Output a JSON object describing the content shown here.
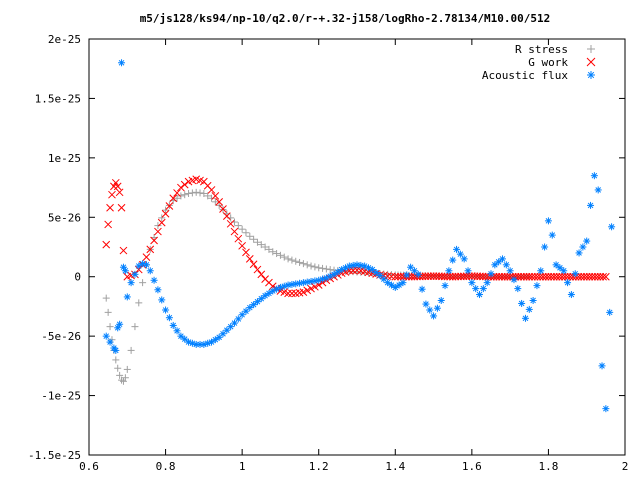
{
  "chart_data": {
    "type": "scatter",
    "title": "m5/js128/ks94/np-10/q2.0/r-+.32-j158/logRho-2.78134/M10.00/512",
    "xlim": [
      0.6,
      2.0
    ],
    "ylim": [
      -1.5e-25,
      2e-25
    ],
    "x_ticks": [
      {
        "value": 0.6,
        "label": "0.6"
      },
      {
        "value": 0.8,
        "label": "0.8"
      },
      {
        "value": 1.0,
        "label": "1"
      },
      {
        "value": 1.2,
        "label": "1.2"
      },
      {
        "value": 1.4,
        "label": "1.4"
      },
      {
        "value": 1.6,
        "label": "1.6"
      },
      {
        "value": 1.8,
        "label": "1.8"
      },
      {
        "value": 2.0,
        "label": "2"
      }
    ],
    "y_ticks": [
      {
        "value": 2e-25,
        "label": "2e-25"
      },
      {
        "value": 1.5e-25,
        "label": "1.5e-25"
      },
      {
        "value": 1e-25,
        "label": "1e-25"
      },
      {
        "value": 5e-26,
        "label": "5e-26"
      },
      {
        "value": 0,
        "label": "0"
      },
      {
        "value": -5e-26,
        "label": "-5e-26"
      },
      {
        "value": -1e-25,
        "label": "-1e-25"
      },
      {
        "value": -1.5e-25,
        "label": "-1.5e-25"
      }
    ],
    "grid": false,
    "legend_position": "top-right",
    "series": [
      {
        "name": "R stress",
        "marker": "plus",
        "color": "#a0a0a0",
        "x": [
          0.645,
          0.65,
          0.655,
          0.66,
          0.665,
          0.67,
          0.675,
          0.68,
          0.685,
          0.69,
          0.695,
          0.7,
          0.71,
          0.72,
          0.73,
          0.74,
          0.75,
          0.76,
          0.78,
          0.8,
          0.82,
          0.84,
          0.86,
          0.88,
          0.9,
          0.92,
          0.94,
          0.96,
          0.98,
          1.0,
          1.02,
          1.04,
          1.06,
          1.08,
          1.1,
          1.12,
          1.14,
          1.16,
          1.18,
          1.2,
          1.22,
          1.24,
          1.26,
          1.28,
          1.3,
          1.32,
          1.34,
          1.36,
          1.38,
          1.4,
          1.45,
          1.5,
          1.55,
          1.6,
          1.65,
          1.7,
          1.75
        ],
        "y": [
          -1.8e-26,
          -3e-26,
          -4.2e-26,
          -5.3e-26,
          -6.2e-26,
          -7e-26,
          -7.7e-26,
          -8.3e-26,
          -8.7e-26,
          -8.8e-26,
          -8.5e-26,
          -7.8e-26,
          -6.2e-26,
          -4.2e-26,
          -2.2e-26,
          -5e-27,
          1e-26,
          2.3e-26,
          4.3e-26,
          5.6e-26,
          6.4e-26,
          6.8e-26,
          7e-26,
          7.1e-26,
          7e-26,
          6.6e-26,
          6e-26,
          5.3e-26,
          4.6e-26,
          4e-26,
          3.4e-26,
          2.9e-26,
          2.5e-26,
          2.1e-26,
          1.8e-26,
          1.5e-26,
          1.3e-26,
          1.1e-26,
          9e-27,
          7.5e-27,
          6.5e-27,
          5.5e-27,
          5e-27,
          4.5e-27,
          4e-27,
          3.5e-27,
          3e-27,
          2.5e-27,
          2e-27,
          1.5e-27,
          1e-27,
          5e-28,
          3e-28,
          2e-28,
          1e-28,
          0,
          0
        ]
      },
      {
        "name": "G work",
        "marker": "cross",
        "color": "#ff0000",
        "x": [
          0.645,
          0.65,
          0.655,
          0.66,
          0.665,
          0.67,
          0.675,
          0.68,
          0.685,
          0.69,
          0.7,
          0.72,
          0.74,
          0.76,
          0.78,
          0.8,
          0.82,
          0.84,
          0.86,
          0.88,
          0.9,
          0.92,
          0.94,
          0.96,
          0.98,
          1.0,
          1.02,
          1.04,
          1.06,
          1.08,
          1.1,
          1.12,
          1.14,
          1.16,
          1.18,
          1.2,
          1.22,
          1.24,
          1.26,
          1.28,
          1.3,
          1.32,
          1.34,
          1.36,
          1.38,
          1.4,
          1.45,
          1.5,
          1.55,
          1.6,
          1.65,
          1.7,
          1.75,
          1.8,
          1.85,
          1.9,
          1.95
        ],
        "y": [
          2.7e-26,
          4.4e-26,
          5.8e-26,
          6.9e-26,
          7.6e-26,
          7.9e-26,
          7.6e-26,
          7.1e-26,
          5.8e-26,
          2.2e-26,
          0,
          2e-27,
          1e-26,
          2.3e-26,
          3.8e-26,
          5.3e-26,
          6.6e-26,
          7.5e-26,
          8e-26,
          8.2e-26,
          8e-26,
          7.3e-26,
          6.3e-26,
          5.1e-26,
          3.8e-26,
          2.6e-26,
          1.5e-26,
          6e-27,
          -2e-27,
          -8e-27,
          -1.2e-26,
          -1.4e-26,
          -1.4e-26,
          -1.3e-26,
          -1e-26,
          -7e-27,
          -3e-27,
          0,
          3e-27,
          5e-27,
          5.5e-27,
          4.5e-27,
          3e-27,
          1.5e-27,
          5e-28,
          0,
          1e-28,
          5e-28,
          0,
          5e-28,
          0,
          0,
          0,
          0,
          0,
          0,
          0
        ]
      },
      {
        "name": "Acoustic flux",
        "marker": "star",
        "color": "#0080ff",
        "x": [
          0.645,
          0.655,
          0.665,
          0.67,
          0.675,
          0.68,
          0.685,
          0.69,
          0.695,
          0.7,
          0.71,
          0.72,
          0.73,
          0.74,
          0.75,
          0.76,
          0.78,
          0.8,
          0.82,
          0.84,
          0.86,
          0.88,
          0.9,
          0.92,
          0.94,
          0.96,
          0.98,
          1.0,
          1.02,
          1.04,
          1.06,
          1.08,
          1.1,
          1.12,
          1.14,
          1.16,
          1.18,
          1.2,
          1.22,
          1.24,
          1.26,
          1.28,
          1.3,
          1.32,
          1.34,
          1.36,
          1.38,
          1.4,
          1.42,
          1.44,
          1.46,
          1.48,
          1.5,
          1.52,
          1.54,
          1.56,
          1.58,
          1.6,
          1.62,
          1.64,
          1.66,
          1.68,
          1.7,
          1.72,
          1.74,
          1.76,
          1.78,
          1.79,
          1.8,
          1.81,
          1.82,
          1.84,
          1.86,
          1.88,
          1.9,
          1.91,
          1.92,
          1.93,
          1.94,
          1.95,
          1.96,
          1.965
        ],
        "y": [
          -5e-26,
          -5.5e-26,
          -6e-26,
          -6.2e-26,
          -4.3e-26,
          -4e-26,
          1.8e-25,
          8e-27,
          5e-27,
          -1.7e-26,
          -5e-27,
          2e-27,
          9e-27,
          1.1e-26,
          1e-26,
          5e-27,
          -1.1e-26,
          -2.8e-26,
          -4.1e-26,
          -5e-26,
          -5.5e-26,
          -5.7e-26,
          -5.7e-26,
          -5.5e-26,
          -5.1e-26,
          -4.5e-26,
          -3.9e-26,
          -3.2e-26,
          -2.6e-26,
          -2.1e-26,
          -1.6e-26,
          -1.2e-26,
          -9e-27,
          -7e-27,
          -6e-27,
          -5e-27,
          -4e-27,
          -3e-27,
          -1e-27,
          2e-27,
          6e-27,
          9e-27,
          1e-26,
          9e-27,
          6e-27,
          1e-27,
          -5e-27,
          -9e-27,
          -5e-27,
          8e-27,
          2e-27,
          -2.3e-26,
          -3.3e-26,
          -2e-26,
          5e-27,
          2.3e-26,
          1.5e-26,
          -5e-27,
          -1.5e-26,
          -5e-27,
          1e-26,
          1.5e-26,
          5e-27,
          -1e-26,
          -3.5e-26,
          -2e-26,
          5e-27,
          2.5e-26,
          4.7e-26,
          3.5e-26,
          1e-26,
          5e-27,
          -1.5e-26,
          2e-26,
          3e-26,
          6e-26,
          8.5e-26,
          7.3e-26,
          -7.5e-26,
          -1.11e-25,
          -3e-26,
          4.2e-26
        ]
      }
    ]
  }
}
